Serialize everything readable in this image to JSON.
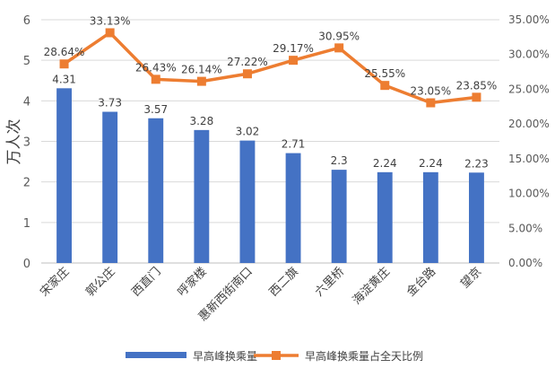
{
  "chart_data": {
    "type": "bar+line",
    "title": "",
    "categories": [
      "宋家庄",
      "郭公庄",
      "西直门",
      "呼家楼",
      "惠新西街南口",
      "西二旗",
      "六里桥",
      "海淀黄庄",
      "金台路",
      "望京"
    ],
    "series": [
      {
        "name": "早高峰换乘量",
        "type": "bar",
        "axis": "left",
        "color": "#4472C4",
        "values": [
          4.31,
          3.73,
          3.57,
          3.28,
          3.02,
          2.71,
          2.3,
          2.24,
          2.24,
          2.23
        ],
        "labels": [
          "4.31",
          "3.73",
          "3.57",
          "3.28",
          "3.02",
          "2.71",
          "2.3",
          "2.24",
          "2.24",
          "2.23"
        ]
      },
      {
        "name": "早高峰换乘量占全天比例",
        "type": "line",
        "axis": "right",
        "color": "#ED7D31",
        "values": [
          28.64,
          33.13,
          26.43,
          26.14,
          27.22,
          29.17,
          30.95,
          25.55,
          23.05,
          23.85
        ],
        "labels": [
          "28.64%",
          "33.13%",
          "26.43%",
          "26.14%",
          "27.22%",
          "29.17%",
          "30.95%",
          "25.55%",
          "23.05%",
          "23.85%"
        ]
      }
    ],
    "ylabel": "万人次",
    "ylim": [
      0,
      6
    ],
    "y_ticks": [
      "0",
      "1",
      "2",
      "3",
      "4",
      "5",
      "6"
    ],
    "y2lim": [
      0,
      35
    ],
    "y2_ticks": [
      "0.00%",
      "5.00%",
      "10.00%",
      "15.00%",
      "20.00%",
      "25.00%",
      "30.00%",
      "35.00%"
    ],
    "grid": true,
    "legend_position": "bottom"
  }
}
